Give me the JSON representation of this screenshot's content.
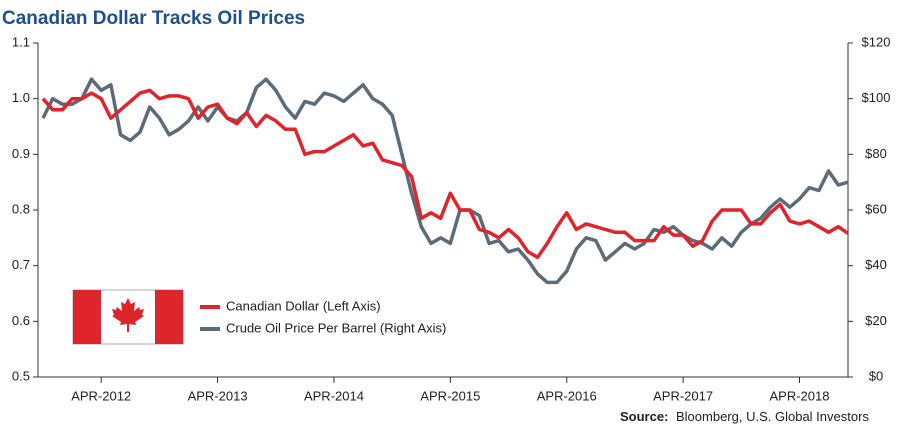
{
  "chart_data": {
    "type": "line",
    "title": "Canadian Dollar Tracks Oil Prices",
    "source_label": "Source:",
    "source": "Bloomberg, U.S. Global Investors",
    "categories": [
      null,
      null,
      null,
      null,
      null,
      null,
      "APR-2012",
      null,
      null,
      null,
      null,
      null,
      null,
      null,
      null,
      null,
      null,
      null,
      "APR-2013",
      null,
      null,
      null,
      null,
      null,
      null,
      null,
      null,
      null,
      null,
      null,
      "APR-2014",
      null,
      null,
      null,
      null,
      null,
      null,
      null,
      null,
      null,
      null,
      null,
      "APR-2015",
      null,
      null,
      null,
      null,
      null,
      null,
      null,
      null,
      null,
      null,
      null,
      "APR-2016",
      null,
      null,
      null,
      null,
      null,
      null,
      null,
      null,
      null,
      null,
      null,
      "APR-2017",
      null,
      null,
      null,
      null,
      null,
      null,
      null,
      null,
      null,
      null,
      null,
      "APR-2018",
      null,
      null,
      null,
      null,
      null
    ],
    "series": [
      {
        "name": "Canadian Dollar (Left Axis)",
        "color": "#e0242b",
        "axis": "y",
        "values": [
          1.0,
          0.98,
          0.98,
          1.0,
          1.0,
          1.01,
          1.0,
          0.965,
          0.98,
          0.995,
          1.01,
          1.015,
          1.0,
          1.005,
          1.005,
          1.0,
          0.965,
          0.985,
          0.99,
          0.965,
          0.955,
          0.975,
          0.95,
          0.97,
          0.96,
          0.945,
          0.945,
          0.9,
          0.905,
          0.905,
          0.915,
          0.925,
          0.935,
          0.915,
          0.92,
          0.89,
          0.885,
          0.88,
          0.86,
          0.785,
          0.795,
          0.785,
          0.83,
          0.8,
          0.8,
          0.765,
          0.76,
          0.75,
          0.765,
          0.75,
          0.725,
          0.715,
          0.74,
          0.77,
          0.795,
          0.765,
          0.775,
          0.77,
          0.765,
          0.76,
          0.76,
          0.745,
          0.745,
          0.745,
          0.77,
          0.755,
          0.755,
          0.735,
          0.745,
          0.78,
          0.8,
          0.8,
          0.8,
          0.775,
          0.775,
          0.795,
          0.81,
          0.78,
          0.775,
          0.78,
          0.77,
          0.76,
          0.77,
          0.758
        ]
      },
      {
        "name": "Crude Oil Price Per Barrel (Right Axis)",
        "color": "#5b6b78",
        "axis": "y2",
        "values": [
          93,
          100,
          98,
          98,
          100,
          107,
          103,
          105,
          87,
          85,
          88,
          97,
          93,
          87,
          89,
          92,
          97,
          92,
          97,
          93,
          92,
          95,
          104,
          107,
          103,
          97,
          93,
          99,
          98,
          102,
          101,
          99,
          102,
          105,
          100,
          98,
          94,
          80,
          66,
          54,
          48,
          50,
          48,
          60,
          60,
          58,
          48,
          49,
          45,
          46,
          42,
          37,
          34,
          34,
          38,
          46,
          50,
          49,
          42,
          45,
          48,
          46,
          48,
          53,
          52,
          54,
          51,
          49,
          48,
          46,
          50,
          47,
          52,
          55,
          57,
          61,
          64,
          61,
          64,
          68,
          67,
          74,
          69,
          70
        ]
      }
    ],
    "ylim": [
      0.5,
      1.1
    ],
    "yticks": [
      0.5,
      0.6,
      0.7,
      0.8,
      0.9,
      {
        "value": 1,
        "label": "1.0"
      },
      1.1
    ],
    "y2lim": [
      0,
      120
    ],
    "y2ticks": [
      {
        "value": 0,
        "label": "$0"
      },
      {
        "value": 20,
        "label": "$20"
      },
      {
        "value": 40,
        "label": "$40"
      },
      {
        "value": 60,
        "label": "$60"
      },
      {
        "value": 80,
        "label": "$80"
      },
      {
        "value": 100,
        "label": "$100"
      },
      {
        "value": 120,
        "label": "$120"
      }
    ],
    "grid": false,
    "legend": "lower-left"
  }
}
